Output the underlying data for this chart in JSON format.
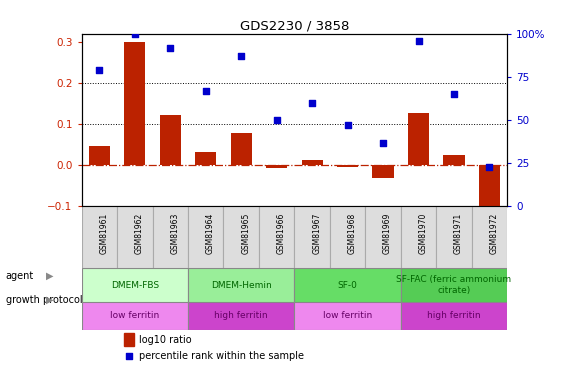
{
  "title": "GDS2230 / 3858",
  "samples": [
    "GSM81961",
    "GSM81962",
    "GSM81963",
    "GSM81964",
    "GSM81965",
    "GSM81966",
    "GSM81967",
    "GSM81968",
    "GSM81969",
    "GSM81970",
    "GSM81971",
    "GSM81972"
  ],
  "log10_ratio": [
    0.046,
    0.3,
    0.122,
    0.033,
    0.079,
    -0.007,
    0.013,
    -0.003,
    -0.03,
    0.128,
    0.025,
    -0.115
  ],
  "percentile_rank_pct": [
    79,
    100,
    92,
    67,
    87,
    50,
    60,
    47,
    37,
    96,
    65,
    23
  ],
  "bar_color": "#bb2200",
  "dot_color": "#0000cc",
  "ylim_left": [
    -0.1,
    0.32
  ],
  "ylim_right": [
    0,
    100
  ],
  "yticks_left": [
    -0.1,
    0.0,
    0.1,
    0.2,
    0.3
  ],
  "yticks_right": [
    0,
    25,
    50,
    75,
    100
  ],
  "hlines": [
    0.1,
    0.2
  ],
  "agent_groups": [
    {
      "label": "DMEM-FBS",
      "start": 0,
      "end": 3,
      "color": "#ccffcc",
      "text_color": "#006600"
    },
    {
      "label": "DMEM-Hemin",
      "start": 3,
      "end": 6,
      "color": "#99ee99",
      "text_color": "#006600"
    },
    {
      "label": "SF-0",
      "start": 6,
      "end": 9,
      "color": "#66dd66",
      "text_color": "#006600"
    },
    {
      "label": "SF-FAC (ferric ammonium\ncitrate)",
      "start": 9,
      "end": 12,
      "color": "#55cc55",
      "text_color": "#006600"
    }
  ],
  "growth_groups": [
    {
      "label": "low ferritin",
      "start": 0,
      "end": 3,
      "color": "#ee88ee",
      "text_color": "#660066"
    },
    {
      "label": "high ferritin",
      "start": 3,
      "end": 6,
      "color": "#cc44cc",
      "text_color": "#660066"
    },
    {
      "label": "low ferritin",
      "start": 6,
      "end": 9,
      "color": "#ee88ee",
      "text_color": "#660066"
    },
    {
      "label": "high ferritin",
      "start": 9,
      "end": 12,
      "color": "#cc44cc",
      "text_color": "#660066"
    }
  ],
  "legend_bar_label": "log10 ratio",
  "legend_dot_label": "percentile rank within the sample",
  "left_tick_color": "#cc2200",
  "right_tick_color": "#0000cc",
  "agent_row_label": "agent",
  "growth_row_label": "growth protocol",
  "xtick_bg": "#dddddd"
}
